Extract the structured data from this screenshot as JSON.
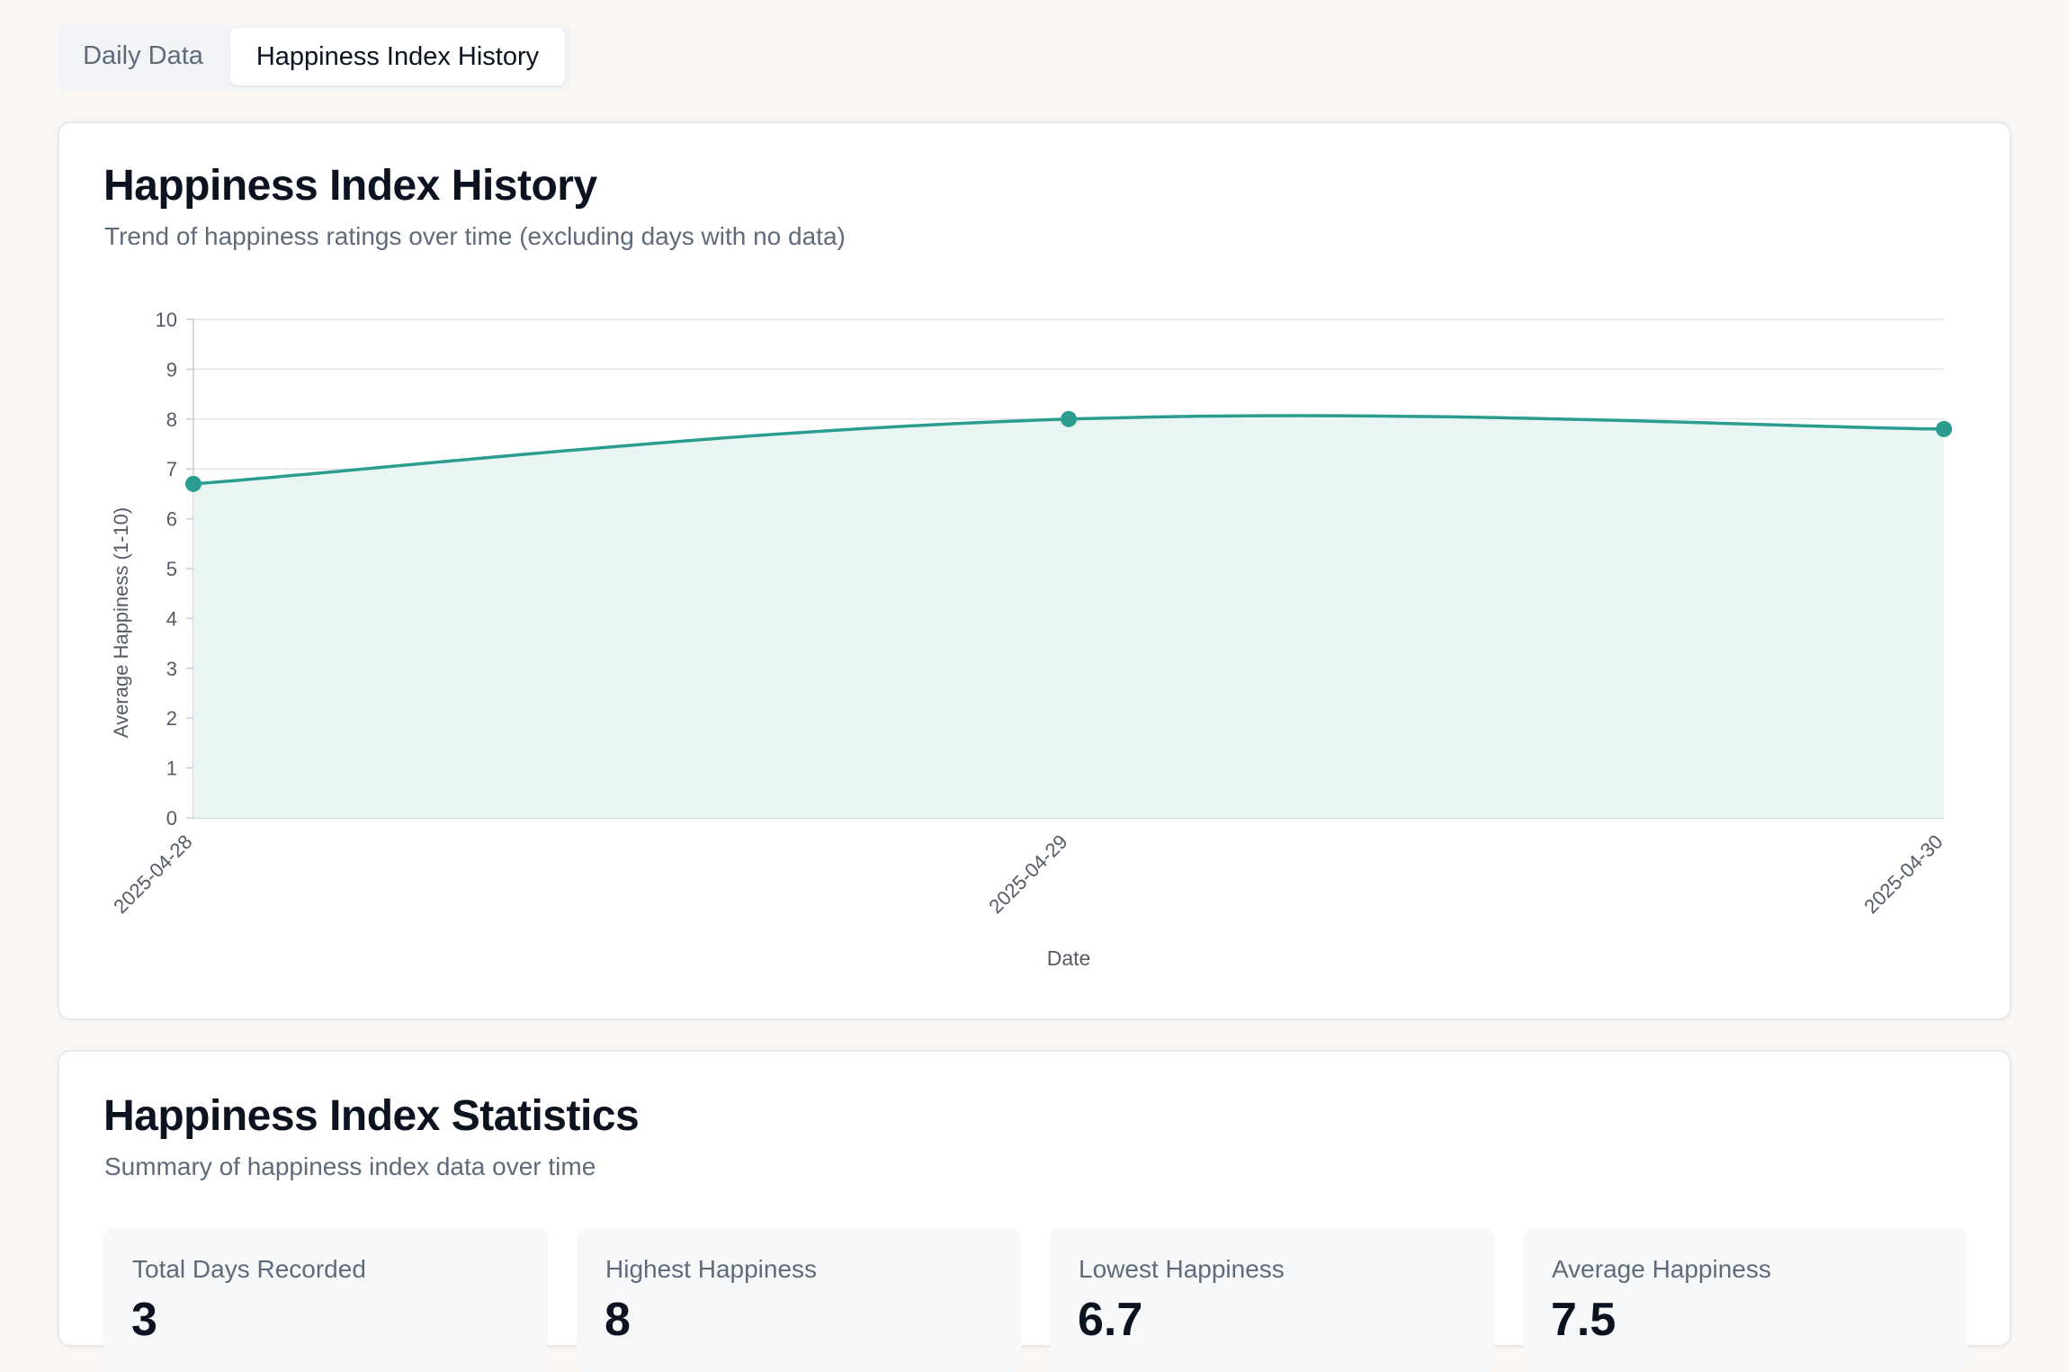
{
  "tabs": [
    {
      "label": "Daily Data",
      "active": false
    },
    {
      "label": "Happiness Index History",
      "active": true
    }
  ],
  "chart_card": {
    "title": "Happiness Index History",
    "subtitle": "Trend of happiness ratings over time (excluding days with no data)"
  },
  "chart_data": {
    "type": "area",
    "x": [
      "2025-04-28",
      "2025-04-29",
      "2025-04-30"
    ],
    "series": [
      {
        "values": [
          6.7,
          8.0,
          7.8
        ]
      }
    ],
    "xlabel": "Date",
    "ylabel": "Average Happiness (1-10)",
    "ylim": [
      0,
      10
    ],
    "yticks": [
      0,
      1,
      2,
      3,
      4,
      5,
      6,
      7,
      8,
      9,
      10
    ],
    "grid": true,
    "colors": {
      "line": "#2a9d8f",
      "fill": "#e9f5f3"
    }
  },
  "stats_card": {
    "title": "Happiness Index Statistics",
    "subtitle": "Summary of happiness index data over time",
    "items": [
      {
        "label": "Total Days Recorded",
        "value": "3"
      },
      {
        "label": "Highest Happiness",
        "value": "8"
      },
      {
        "label": "Lowest Happiness",
        "value": "6.7"
      },
      {
        "label": "Average Happiness",
        "value": "7.5"
      }
    ]
  }
}
